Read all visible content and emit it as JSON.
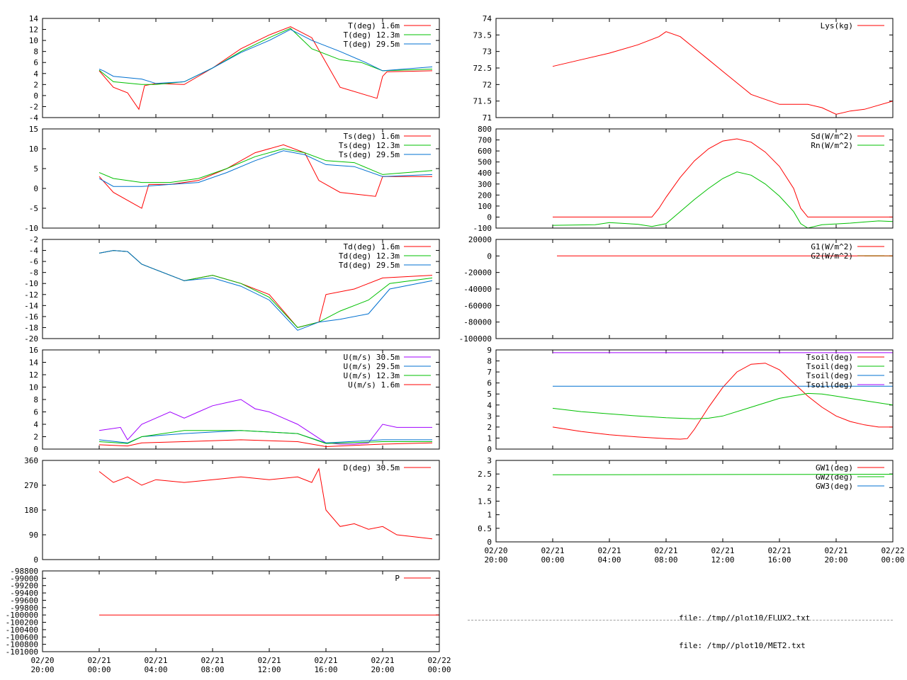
{
  "chart_data": [
    {
      "type": "line",
      "ylim": [
        -4,
        14
      ],
      "yticks": [
        -4,
        -2,
        0,
        2,
        4,
        6,
        8,
        10,
        12,
        14
      ],
      "series": [
        {
          "name": "T(deg)  1.6m",
          "color": "#ff0000",
          "x": [
            4,
            5,
            6,
            6.8,
            7.2,
            8,
            10,
            12,
            14,
            16,
            17.5,
            19,
            21,
            23.6,
            24,
            24.3,
            27.5
          ],
          "y": [
            4.5,
            1.5,
            0.5,
            -2.5,
            1.8,
            2.2,
            2.0,
            5.0,
            8.5,
            11.0,
            12.5,
            10.5,
            1.5,
            -0.5,
            3.5,
            4.3,
            4.5
          ]
        },
        {
          "name": "T(deg) 12.3m",
          "color": "#00c000",
          "x": [
            4,
            5,
            7,
            8,
            10,
            12,
            14,
            16,
            17.5,
            19,
            21,
            22.5,
            24,
            27.5
          ],
          "y": [
            4.6,
            2.5,
            2.0,
            2.0,
            2.5,
            5.0,
            8.0,
            10.5,
            12.2,
            8.5,
            6.5,
            6.0,
            4.5,
            4.8
          ]
        },
        {
          "name": "T(deg) 29.5m",
          "color": "#0070d0",
          "x": [
            4,
            4.3,
            5,
            7,
            8,
            10,
            12,
            14,
            16,
            17.5,
            19,
            21,
            22.8,
            24,
            27.5
          ],
          "y": [
            4.8,
            4.5,
            3.5,
            3.0,
            2.2,
            2.5,
            5.0,
            7.8,
            10.0,
            12.0,
            10.0,
            8.0,
            6.0,
            4.5,
            5.2
          ]
        }
      ]
    },
    {
      "type": "line",
      "ylim": [
        -10,
        15
      ],
      "yticks": [
        -10,
        -5,
        0,
        5,
        10,
        15
      ],
      "series": [
        {
          "name": "Ts(deg)  1.6m",
          "color": "#ff0000",
          "x": [
            4,
            5,
            6.5,
            7,
            7.5,
            9,
            11,
            13,
            15,
            17,
            18.5,
            19.5,
            21,
            23.5,
            24,
            27.5
          ],
          "y": [
            3,
            -1,
            -4,
            -5,
            1,
            1,
            2,
            5,
            9,
            11,
            9,
            2,
            -1,
            -2,
            3,
            3
          ]
        },
        {
          "name": "Ts(deg) 12.3m",
          "color": "#00c000",
          "x": [
            4,
            5,
            7,
            9,
            11,
            13,
            15,
            17,
            18.5,
            20,
            22,
            24,
            27.5
          ],
          "y": [
            4,
            2.5,
            1.5,
            1.5,
            2.5,
            5,
            8,
            10,
            9,
            7,
            6.5,
            3.5,
            4.5
          ]
        },
        {
          "name": "Ts(deg) 29.5m",
          "color": "#0070d0",
          "x": [
            4,
            5,
            7,
            9,
            11,
            13,
            15,
            17,
            18.5,
            20,
            22,
            24,
            27.5
          ],
          "y": [
            2.5,
            0.5,
            0.5,
            1,
            1.5,
            4,
            7,
            9.5,
            8.5,
            6,
            5.5,
            3,
            3.5
          ]
        }
      ]
    },
    {
      "type": "line",
      "ylim": [
        -20,
        -2
      ],
      "yticks": [
        -20,
        -18,
        -16,
        -14,
        -12,
        -10,
        -8,
        -6,
        -4,
        -2
      ],
      "series": [
        {
          "name": "Td(deg)  1.6m",
          "color": "#ff0000",
          "x": [
            4,
            5,
            6,
            7,
            8,
            10,
            12,
            14,
            16,
            18,
            19.5,
            20,
            22,
            24,
            27.5
          ],
          "y": [
            -4.5,
            -4,
            -4.2,
            -6.5,
            -7.5,
            -9.5,
            -8.5,
            -10,
            -12,
            -18,
            -17,
            -12,
            -11,
            -9,
            -8.5
          ]
        },
        {
          "name": "Td(deg) 12.3m",
          "color": "#00c000",
          "x": [
            4,
            5,
            6,
            7,
            8,
            10,
            12,
            14,
            16,
            18,
            19.5,
            21,
            23,
            24.5,
            27.5
          ],
          "y": [
            -4.5,
            -4,
            -4.2,
            -6.5,
            -7.5,
            -9.5,
            -8.5,
            -10,
            -12.5,
            -18,
            -17,
            -15,
            -13,
            -10,
            -9
          ]
        },
        {
          "name": "Td(deg) 29.5m",
          "color": "#0070d0",
          "x": [
            4,
            5,
            6,
            7,
            8,
            10,
            12,
            14,
            16,
            18,
            19.5,
            21,
            23,
            24.5,
            27.5
          ],
          "y": [
            -4.5,
            -4,
            -4.2,
            -6.5,
            -7.5,
            -9.5,
            -9,
            -10.5,
            -13,
            -18.5,
            -17,
            -16.5,
            -15.5,
            -11,
            -9.5
          ]
        }
      ]
    },
    {
      "type": "line",
      "ylim": [
        0,
        16
      ],
      "yticks": [
        0,
        2,
        4,
        6,
        8,
        10,
        12,
        14,
        16
      ],
      "series": [
        {
          "name": "U(m/s) 30.5m",
          "color": "#a000ff",
          "x": [
            4,
            5.5,
            6,
            7,
            8,
            9,
            10,
            11,
            12,
            13,
            14,
            15,
            16,
            17,
            18,
            19,
            20,
            21,
            22,
            23,
            24,
            25,
            27.5
          ],
          "y": [
            3,
            3.5,
            1.5,
            4,
            5,
            6,
            5,
            6,
            7,
            7.5,
            8,
            6.5,
            6,
            5,
            4,
            2.5,
            1,
            0.8,
            0.8,
            1,
            4,
            3.5,
            3.5
          ]
        },
        {
          "name": "U(m/s) 29.5m",
          "color": "#0070d0",
          "x": [
            4,
            6,
            7,
            10,
            14,
            18,
            20,
            24,
            27.5
          ],
          "y": [
            1.5,
            1,
            2,
            2.5,
            3,
            2.5,
            1,
            1.5,
            1.5
          ]
        },
        {
          "name": "U(m/s) 12.3m",
          "color": "#00c000",
          "x": [
            4,
            6,
            7,
            10,
            14,
            18,
            20,
            24,
            27.5
          ],
          "y": [
            1.2,
            0.9,
            2,
            3,
            3,
            2.5,
            0.9,
            1.2,
            1.2
          ]
        },
        {
          "name": "U(m/s)  1.6m",
          "color": "#ff0000",
          "x": [
            4,
            6,
            7,
            10,
            14,
            18,
            20,
            24,
            27.5
          ],
          "y": [
            0.7,
            0.5,
            1.0,
            1.2,
            1.5,
            1.2,
            0.4,
            0.8,
            1.0
          ]
        }
      ]
    },
    {
      "type": "line",
      "ylim": [
        0,
        360
      ],
      "yticks": [
        0,
        90,
        180,
        270,
        360
      ],
      "series": [
        {
          "name": "D(deg) 30.5m",
          "color": "#ff0000",
          "x": [
            4,
            5,
            6,
            7,
            8,
            10,
            12,
            14,
            16,
            18,
            19,
            19.5,
            20,
            21,
            22,
            23,
            24,
            25,
            27.5
          ],
          "y": [
            320,
            280,
            300,
            270,
            290,
            280,
            290,
            300,
            290,
            300,
            280,
            330,
            180,
            120,
            130,
            110,
            120,
            90,
            75
          ]
        }
      ]
    },
    {
      "type": "line",
      "ylim": [
        -101000,
        -98800
      ],
      "yticks": [
        -101000,
        -100800,
        -100600,
        -100400,
        -100200,
        -100000,
        -99800,
        -99600,
        -99400,
        -99200,
        -99000,
        -98800
      ],
      "series": [
        {
          "name": "P",
          "color": "#ff0000",
          "x": [
            4,
            28
          ],
          "y": [
            -100000,
            -100000
          ]
        }
      ]
    },
    {
      "type": "line",
      "ylim": [
        71,
        74
      ],
      "yticks": [
        71,
        71.5,
        72,
        72.5,
        73,
        73.5,
        74
      ],
      "series": [
        {
          "name": "Lys(kg)",
          "color": "#ff0000",
          "x": [
            4,
            6,
            8,
            10,
            11.5,
            12,
            13,
            14,
            15,
            16,
            17,
            18,
            20,
            22,
            23,
            24,
            25,
            26,
            28
          ],
          "y": [
            72.55,
            72.75,
            72.95,
            73.2,
            73.45,
            73.6,
            73.45,
            73.1,
            72.75,
            72.4,
            72.05,
            71.7,
            71.4,
            71.4,
            71.3,
            71.1,
            71.2,
            71.25,
            71.5
          ]
        }
      ]
    },
    {
      "type": "line",
      "ylim": [
        -100,
        800
      ],
      "yticks": [
        -100,
        0,
        100,
        200,
        300,
        400,
        500,
        600,
        700,
        800
      ],
      "series": [
        {
          "name": "Sd(W/m^2)",
          "color": "#ff0000",
          "x": [
            4,
            11,
            11.5,
            12,
            13,
            14,
            15,
            16,
            17,
            18,
            19,
            20,
            21,
            21.5,
            22,
            28
          ],
          "y": [
            0,
            0,
            80,
            180,
            360,
            510,
            620,
            690,
            710,
            680,
            590,
            460,
            260,
            80,
            0,
            0
          ]
        },
        {
          "name": "Rn(W/m^2)",
          "color": "#00c000",
          "x": [
            4,
            7,
            8,
            10,
            11,
            12,
            13,
            14,
            15,
            16,
            17,
            18,
            19,
            20,
            21,
            21.5,
            22,
            23,
            25,
            26,
            27,
            28
          ],
          "y": [
            -75,
            -70,
            -50,
            -65,
            -85,
            -60,
            50,
            160,
            260,
            350,
            410,
            380,
            300,
            190,
            50,
            -60,
            -100,
            -70,
            -55,
            -45,
            -35,
            -40
          ]
        }
      ]
    },
    {
      "type": "line",
      "ylim": [
        -100000,
        20000
      ],
      "yticks": [
        -100000,
        -80000,
        -60000,
        -40000,
        -20000,
        0,
        20000
      ],
      "series": [
        {
          "name": "G1(W/m^2)",
          "color": "#ff0000",
          "x": [
            4.3,
            28
          ],
          "y": [
            0,
            0
          ]
        },
        {
          "name": "G2(W/m^2)",
          "color": "#a06000",
          "x": [
            26,
            28
          ],
          "y": [
            0,
            0
          ]
        }
      ]
    },
    {
      "type": "line",
      "ylim": [
        0,
        9
      ],
      "yticks": [
        0,
        1,
        2,
        3,
        4,
        5,
        6,
        7,
        8,
        9
      ],
      "series": [
        {
          "name": "Tsoil(deg)",
          "color": "#ff0000",
          "x": [
            4,
            6,
            8,
            10,
            12,
            13,
            13.5,
            14,
            15,
            16,
            17,
            18,
            19,
            20,
            21,
            22,
            23,
            24,
            25,
            26,
            27,
            28
          ],
          "y": [
            2.0,
            1.6,
            1.3,
            1.1,
            0.95,
            0.9,
            0.95,
            1.8,
            3.8,
            5.6,
            7.0,
            7.7,
            7.8,
            7.2,
            6.0,
            4.8,
            3.8,
            3.0,
            2.5,
            2.2,
            2.0,
            2.0
          ]
        },
        {
          "name": "Tsoil(deg)",
          "color": "#00c000",
          "x": [
            4,
            6,
            8,
            10,
            12,
            14,
            15,
            16,
            18,
            20,
            22,
            23,
            24,
            26,
            28
          ],
          "y": [
            3.7,
            3.4,
            3.2,
            3.0,
            2.85,
            2.75,
            2.8,
            3.0,
            3.8,
            4.6,
            5.05,
            5.0,
            4.8,
            4.4,
            4.0
          ]
        },
        {
          "name": "Tsoil(deg)",
          "color": "#0070d0",
          "x": [
            4,
            28
          ],
          "y": [
            5.7,
            5.7
          ]
        },
        {
          "name": "Tsoil(deg)",
          "color": "#a000ff",
          "x": [
            4,
            28
          ],
          "y": [
            8.75,
            8.75
          ]
        }
      ]
    },
    {
      "type": "line",
      "ylim": [
        0,
        3
      ],
      "yticks": [
        0,
        0.5,
        1,
        1.5,
        2,
        2.5,
        3
      ],
      "series": [
        {
          "name": "GW1(deg)",
          "color": "#ff0000",
          "x": [],
          "y": []
        },
        {
          "name": "GW2(deg)",
          "color": "#00c000",
          "x": [
            4,
            28
          ],
          "y": [
            2.47,
            2.49
          ]
        },
        {
          "name": "GW3(deg)",
          "color": "#0070d0",
          "x": [],
          "y": []
        }
      ]
    }
  ],
  "time_axis": {
    "xlim": [
      0,
      28
    ],
    "ticks": [
      {
        "x": 0,
        "date": "02/20",
        "time": "20:00"
      },
      {
        "x": 4,
        "date": "02/21",
        "time": "00:00"
      },
      {
        "x": 8,
        "date": "02/21",
        "time": "04:00"
      },
      {
        "x": 12,
        "date": "02/21",
        "time": "08:00"
      },
      {
        "x": 16,
        "date": "02/21",
        "time": "12:00"
      },
      {
        "x": 20,
        "date": "02/21",
        "time": "16:00"
      },
      {
        "x": 24,
        "date": "02/21",
        "time": "20:00"
      },
      {
        "x": 28,
        "date": "02/22",
        "time": "00:00"
      }
    ]
  },
  "files": [
    "file: /tmp//plot10/FLUX2.txt",
    "file: /tmp//plot10/MET2.txt"
  ]
}
